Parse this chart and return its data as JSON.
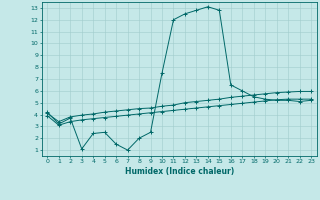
{
  "xlabel": "Humidex (Indice chaleur)",
  "background_color": "#c5e8e8",
  "grid_color": "#a0cccc",
  "line_color": "#006868",
  "xmin": -0.5,
  "xmax": 23.5,
  "ymin": 0.5,
  "ymax": 13.5,
  "xticks": [
    0,
    1,
    2,
    3,
    4,
    5,
    6,
    7,
    8,
    9,
    10,
    11,
    12,
    13,
    14,
    15,
    16,
    17,
    18,
    19,
    20,
    21,
    22,
    23
  ],
  "yticks": [
    1,
    2,
    3,
    4,
    5,
    6,
    7,
    8,
    9,
    10,
    11,
    12,
    13
  ],
  "series1_x": [
    0,
    1,
    2,
    3,
    4,
    5,
    6,
    7,
    8,
    9,
    10,
    11,
    12,
    13,
    14,
    15,
    16,
    17,
    18,
    19,
    20,
    21,
    22,
    23
  ],
  "series1_y": [
    4.2,
    3.2,
    3.7,
    1.1,
    2.4,
    2.5,
    1.5,
    1.0,
    2.0,
    2.5,
    7.5,
    12.0,
    12.5,
    12.8,
    13.1,
    12.8,
    6.5,
    6.0,
    5.5,
    5.3,
    5.2,
    5.2,
    5.1,
    5.2
  ],
  "series2_x": [
    0,
    1,
    2,
    3,
    4,
    5,
    6,
    7,
    8,
    9,
    10,
    11,
    12,
    13,
    14,
    15,
    16,
    17,
    18,
    19,
    20,
    21,
    22,
    23
  ],
  "series2_y": [
    4.1,
    3.4,
    3.8,
    3.95,
    4.05,
    4.2,
    4.3,
    4.4,
    4.5,
    4.55,
    4.7,
    4.8,
    5.0,
    5.1,
    5.2,
    5.3,
    5.45,
    5.55,
    5.65,
    5.75,
    5.85,
    5.9,
    5.95,
    5.95
  ],
  "series3_x": [
    0,
    1,
    2,
    3,
    4,
    5,
    6,
    7,
    8,
    9,
    10,
    11,
    12,
    13,
    14,
    15,
    16,
    17,
    18,
    19,
    20,
    21,
    22,
    23
  ],
  "series3_y": [
    3.9,
    3.1,
    3.4,
    3.55,
    3.65,
    3.75,
    3.85,
    3.95,
    4.05,
    4.15,
    4.25,
    4.35,
    4.45,
    4.55,
    4.65,
    4.75,
    4.85,
    4.95,
    5.05,
    5.15,
    5.25,
    5.3,
    5.3,
    5.3
  ]
}
